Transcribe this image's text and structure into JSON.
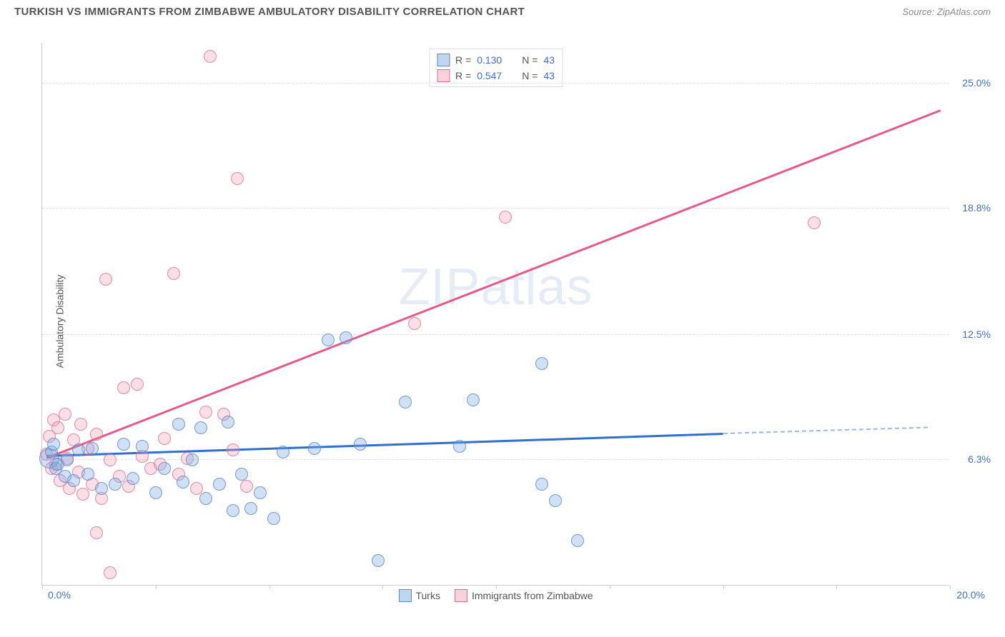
{
  "header": {
    "title": "TURKISH VS IMMIGRANTS FROM ZIMBABWE AMBULATORY DISABILITY CORRELATION CHART",
    "source": "Source: ZipAtlas.com"
  },
  "chart": {
    "type": "scatter",
    "y_axis_label": "Ambulatory Disability",
    "watermark": "ZIPatlas",
    "xlim": [
      0,
      20
    ],
    "ylim": [
      0,
      27
    ],
    "x_ticks": [
      0,
      2.5,
      5,
      7.5,
      10,
      12.5,
      15,
      17.5,
      20
    ],
    "x_tick_labels": {
      "start": "0.0%",
      "end": "20.0%"
    },
    "y_gridlines": [
      6.3,
      12.5,
      18.8,
      25.0
    ],
    "y_tick_labels": [
      "6.3%",
      "12.5%",
      "18.8%",
      "25.0%"
    ],
    "background_color": "#ffffff",
    "grid_color": "#e0e0e0",
    "axis_color": "#cccccc",
    "blue_color": "#5a8ac9",
    "pink_color": "#e06a8f",
    "label_color": "#3b6fc9",
    "point_radius": 9,
    "stats": [
      {
        "swatch": "blue",
        "r_label": "R =",
        "r_value": "0.130",
        "n_label": "N =",
        "n_value": "43"
      },
      {
        "swatch": "pink",
        "r_label": "R =",
        "r_value": "0.547",
        "n_label": "N =",
        "n_value": "43"
      }
    ],
    "bottom_legend": [
      {
        "swatch": "blue",
        "label": "Turks"
      },
      {
        "swatch": "pink",
        "label": "Immigrants from Zimbabwe"
      }
    ],
    "trend_lines": [
      {
        "series": "blue",
        "style": "solid",
        "x1": 0.1,
        "y1": 6.5,
        "x2": 15.0,
        "y2": 7.6
      },
      {
        "series": "blue",
        "style": "dash",
        "x1": 15.0,
        "y1": 7.6,
        "x2": 19.5,
        "y2": 7.9
      },
      {
        "series": "pink",
        "style": "solid",
        "x1": 0.1,
        "y1": 6.4,
        "x2": 19.8,
        "y2": 23.7
      }
    ],
    "series": {
      "blue": [
        {
          "x": 0.15,
          "y": 6.3,
          "r": 14
        },
        {
          "x": 0.2,
          "y": 6.6
        },
        {
          "x": 0.25,
          "y": 7.0
        },
        {
          "x": 0.3,
          "y": 5.8
        },
        {
          "x": 0.35,
          "y": 6.0
        },
        {
          "x": 0.5,
          "y": 5.4
        },
        {
          "x": 0.55,
          "y": 6.2
        },
        {
          "x": 0.7,
          "y": 5.2
        },
        {
          "x": 0.8,
          "y": 6.7
        },
        {
          "x": 1.0,
          "y": 5.5
        },
        {
          "x": 1.1,
          "y": 6.8
        },
        {
          "x": 1.3,
          "y": 4.8
        },
        {
          "x": 1.6,
          "y": 5.0
        },
        {
          "x": 1.8,
          "y": 7.0
        },
        {
          "x": 2.0,
          "y": 5.3
        },
        {
          "x": 2.2,
          "y": 6.9
        },
        {
          "x": 2.5,
          "y": 4.6
        },
        {
          "x": 2.7,
          "y": 5.8
        },
        {
          "x": 3.0,
          "y": 8.0
        },
        {
          "x": 3.1,
          "y": 5.1
        },
        {
          "x": 3.3,
          "y": 6.2
        },
        {
          "x": 3.5,
          "y": 7.8
        },
        {
          "x": 3.6,
          "y": 4.3
        },
        {
          "x": 3.9,
          "y": 5.0
        },
        {
          "x": 4.1,
          "y": 8.1
        },
        {
          "x": 4.2,
          "y": 3.7
        },
        {
          "x": 4.4,
          "y": 5.5
        },
        {
          "x": 4.6,
          "y": 3.8
        },
        {
          "x": 4.8,
          "y": 4.6
        },
        {
          "x": 5.1,
          "y": 3.3
        },
        {
          "x": 5.3,
          "y": 6.6
        },
        {
          "x": 6.0,
          "y": 6.8
        },
        {
          "x": 6.3,
          "y": 12.2
        },
        {
          "x": 6.7,
          "y": 12.3
        },
        {
          "x": 7.0,
          "y": 7.0
        },
        {
          "x": 7.4,
          "y": 1.2
        },
        {
          "x": 8.0,
          "y": 9.1
        },
        {
          "x": 9.2,
          "y": 6.9
        },
        {
          "x": 9.5,
          "y": 9.2
        },
        {
          "x": 11.0,
          "y": 11.0
        },
        {
          "x": 11.3,
          "y": 4.2
        },
        {
          "x": 11.8,
          "y": 2.2
        },
        {
          "x": 11.0,
          "y": 5.0
        }
      ],
      "pink": [
        {
          "x": 0.1,
          "y": 6.5
        },
        {
          "x": 0.15,
          "y": 7.4
        },
        {
          "x": 0.2,
          "y": 5.8
        },
        {
          "x": 0.25,
          "y": 8.2
        },
        {
          "x": 0.3,
          "y": 6.0
        },
        {
          "x": 0.35,
          "y": 7.8
        },
        {
          "x": 0.4,
          "y": 5.2
        },
        {
          "x": 0.5,
          "y": 8.5
        },
        {
          "x": 0.55,
          "y": 6.3
        },
        {
          "x": 0.6,
          "y": 4.8
        },
        {
          "x": 0.7,
          "y": 7.2
        },
        {
          "x": 0.8,
          "y": 5.6
        },
        {
          "x": 0.85,
          "y": 8.0
        },
        {
          "x": 0.9,
          "y": 4.5
        },
        {
          "x": 1.0,
          "y": 6.8
        },
        {
          "x": 1.1,
          "y": 5.0
        },
        {
          "x": 1.2,
          "y": 7.5
        },
        {
          "x": 1.2,
          "y": 2.6
        },
        {
          "x": 1.3,
          "y": 4.3
        },
        {
          "x": 1.4,
          "y": 15.2
        },
        {
          "x": 1.5,
          "y": 6.2
        },
        {
          "x": 1.5,
          "y": 0.6
        },
        {
          "x": 1.7,
          "y": 5.4
        },
        {
          "x": 1.8,
          "y": 9.8
        },
        {
          "x": 1.9,
          "y": 4.9
        },
        {
          "x": 2.1,
          "y": 10.0
        },
        {
          "x": 2.2,
          "y": 6.4
        },
        {
          "x": 2.4,
          "y": 5.8
        },
        {
          "x": 2.6,
          "y": 6.0
        },
        {
          "x": 2.7,
          "y": 7.3
        },
        {
          "x": 2.9,
          "y": 15.5
        },
        {
          "x": 3.0,
          "y": 5.5
        },
        {
          "x": 3.2,
          "y": 6.3
        },
        {
          "x": 3.4,
          "y": 4.8
        },
        {
          "x": 3.6,
          "y": 8.6
        },
        {
          "x": 3.7,
          "y": 26.3
        },
        {
          "x": 4.0,
          "y": 8.5
        },
        {
          "x": 4.2,
          "y": 6.7
        },
        {
          "x": 4.3,
          "y": 20.2
        },
        {
          "x": 4.5,
          "y": 4.9
        },
        {
          "x": 8.2,
          "y": 13.0
        },
        {
          "x": 10.2,
          "y": 18.3
        },
        {
          "x": 17.0,
          "y": 18.0
        }
      ]
    }
  }
}
